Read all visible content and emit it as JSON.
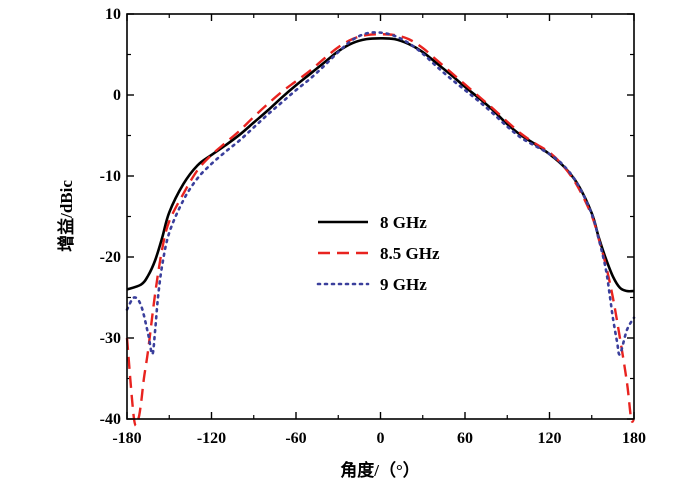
{
  "chart_data": {
    "type": "line",
    "xlabel": "角度/（°）",
    "ylabel": "增益/dBic",
    "xlim": [
      -180,
      180
    ],
    "ylim": [
      -40,
      10
    ],
    "xticks": [
      "-180",
      "-120",
      "-60",
      "0",
      "60",
      "120",
      "180"
    ],
    "yticks": [
      "10",
      "0",
      "-10",
      "-20",
      "-30",
      "-40"
    ],
    "grid": false,
    "legend": "center",
    "series": [
      {
        "name": "8 GHz",
        "color": "#000000",
        "dash": "solid",
        "x": [
          -180,
          -170,
          -165,
          -160,
          -155,
          -150,
          -140,
          -130,
          -120,
          -110,
          -100,
          -90,
          -80,
          -70,
          -60,
          -50,
          -40,
          -30,
          -20,
          -10,
          0,
          10,
          20,
          30,
          40,
          50,
          60,
          70,
          80,
          90,
          100,
          110,
          120,
          130,
          140,
          150,
          155,
          160,
          165,
          170,
          175,
          180
        ],
        "y": [
          -24,
          -23.4,
          -22.3,
          -20.4,
          -17.6,
          -14.5,
          -11.0,
          -8.7,
          -7.4,
          -6.2,
          -4.9,
          -3.4,
          -1.9,
          -0.3,
          1.2,
          2.6,
          4.0,
          5.4,
          6.4,
          6.9,
          7.0,
          6.9,
          6.3,
          5.3,
          3.9,
          2.5,
          1.0,
          -0.4,
          -1.9,
          -3.6,
          -5.0,
          -6.1,
          -7.3,
          -8.8,
          -11.0,
          -14.6,
          -17.6,
          -20.2,
          -22.4,
          -23.8,
          -24.2,
          -24.2
        ]
      },
      {
        "name": "8.5 GHz",
        "color": "#e8231f",
        "dash": "dashed",
        "x": [
          -180,
          -175,
          -172,
          -170,
          -168,
          -165,
          -160,
          -155,
          -150,
          -140,
          -130,
          -120,
          -110,
          -100,
          -90,
          -80,
          -70,
          -60,
          -50,
          -40,
          -30,
          -20,
          -10,
          0,
          10,
          20,
          30,
          40,
          50,
          60,
          70,
          80,
          90,
          100,
          110,
          120,
          130,
          140,
          150,
          155,
          160,
          165,
          170,
          175,
          178,
          180
        ],
        "y": [
          -30,
          -40,
          -40,
          -38,
          -35,
          -31.5,
          -24.5,
          -19.0,
          -15.6,
          -12.2,
          -9.3,
          -7.4,
          -5.9,
          -4.4,
          -2.7,
          -1.1,
          0.4,
          1.7,
          3.0,
          4.5,
          5.9,
          6.9,
          7.4,
          7.5,
          7.4,
          6.9,
          5.8,
          4.3,
          2.8,
          1.3,
          -0.2,
          -1.7,
          -3.3,
          -4.8,
          -6.0,
          -7.1,
          -8.8,
          -11.3,
          -14.9,
          -17.8,
          -21.0,
          -25.0,
          -30.0,
          -35.5,
          -40,
          -40
        ]
      },
      {
        "name": "9 GHz",
        "color": "#3a3f9c",
        "dash": "dotted",
        "x": [
          -180,
          -175,
          -170,
          -165,
          -162,
          -160,
          -158,
          -155,
          -150,
          -140,
          -130,
          -120,
          -110,
          -100,
          -90,
          -80,
          -70,
          -60,
          -50,
          -40,
          -30,
          -20,
          -10,
          0,
          10,
          20,
          30,
          40,
          50,
          60,
          70,
          80,
          90,
          100,
          110,
          120,
          130,
          140,
          150,
          155,
          160,
          163,
          165,
          168,
          170,
          175,
          180
        ],
        "y": [
          -26.5,
          -25.0,
          -26.0,
          -29.5,
          -32.0,
          -29.0,
          -25.0,
          -21.0,
          -17.0,
          -13.0,
          -10.3,
          -8.5,
          -7.0,
          -5.6,
          -4.0,
          -2.4,
          -0.9,
          0.6,
          2.0,
          3.6,
          5.3,
          6.8,
          7.6,
          7.7,
          7.3,
          6.4,
          5.1,
          3.5,
          2.0,
          0.6,
          -0.8,
          -2.3,
          -3.9,
          -5.3,
          -6.3,
          -7.3,
          -8.7,
          -11.0,
          -14.7,
          -17.8,
          -21.5,
          -25.0,
          -27.5,
          -30.5,
          -32.0,
          -29.0,
          -27.5
        ]
      }
    ]
  }
}
